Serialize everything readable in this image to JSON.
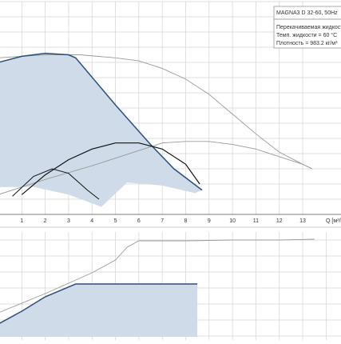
{
  "chart_data": [
    {
      "type": "line",
      "xlim": [
        0,
        14.5
      ],
      "ylim": [
        0,
        14
      ],
      "xticks": [
        1,
        2,
        3,
        4,
        5,
        6,
        7,
        8,
        9,
        10,
        11,
        12,
        13
      ],
      "ygrid": [
        1,
        2,
        3,
        4,
        5,
        6,
        7,
        8,
        9,
        10,
        11,
        12,
        13,
        14
      ],
      "xlabel": "Q [м³/h]",
      "info": [
        "MAGNA3 D 32-60, 50Hz",
        "Перекачиваемая жидкость = Вод",
        "Темп. жидкости = 60 °C",
        "Плотность = 983.2 кг/м³"
      ],
      "areas": [
        {
          "color": "#cfdbe8",
          "x": [
            0,
            1,
            2,
            3,
            3.3,
            5,
            6.5,
            7.5,
            8.7,
            8.4,
            7,
            5.5,
            4.4,
            3,
            1.5,
            0
          ],
          "y": [
            10.0,
            10.4,
            10.6,
            10.5,
            10.3,
            7.2,
            4.6,
            3.0,
            1.6,
            1.4,
            1.9,
            2.1,
            0.5,
            1.3,
            1.8,
            1.8
          ]
        }
      ],
      "series": [
        {
          "color": "#9a9a9a",
          "width": 0.9,
          "x": [
            0,
            2,
            3.5,
            5,
            6,
            7,
            8,
            9,
            10,
            11,
            12,
            13,
            13.4
          ],
          "y": [
            10.3,
            10.5,
            10.5,
            10.3,
            10.1,
            9.6,
            8.9,
            7.9,
            6.6,
            5.3,
            4.1,
            3.3,
            3.0
          ]
        },
        {
          "color": "#9a9a9a",
          "width": 0.9,
          "x": [
            0,
            2,
            4,
            6,
            7,
            8,
            9,
            10,
            11,
            12,
            13,
            13.4
          ],
          "y": [
            1.3,
            2.3,
            3.2,
            4.2,
            4.7,
            4.8,
            4.8,
            4.6,
            4.3,
            3.8,
            3.3,
            3.0
          ]
        },
        {
          "color": "#2b4f7e",
          "width": 1.5,
          "x": [
            0,
            1,
            2,
            3,
            3.3,
            5,
            6.5,
            7.5,
            8.7
          ],
          "y": [
            10.0,
            10.4,
            10.6,
            10.5,
            10.3,
            7.2,
            4.6,
            3.0,
            1.6
          ]
        },
        {
          "color": "#111111",
          "width": 1.2,
          "x": [
            1,
            2,
            3,
            4,
            5,
            6,
            7,
            8,
            8.6
          ],
          "y": [
            1.3,
            2.6,
            3.6,
            4.3,
            4.7,
            4.7,
            4.3,
            3.3,
            2.0
          ]
        },
        {
          "color": "#111111",
          "width": 1.0,
          "x": [
            0.6,
            1.5,
            2.3,
            3,
            3.8,
            4.3
          ],
          "y": [
            1.2,
            2.5,
            3.0,
            2.7,
            1.6,
            1.0
          ]
        }
      ]
    },
    {
      "type": "line",
      "xlim": [
        0,
        14.5
      ],
      "ylim": [
        0,
        6.75
      ],
      "xgrid": [
        1,
        2,
        3,
        4,
        5,
        6,
        7,
        8,
        9,
        10,
        11,
        12,
        13,
        14
      ],
      "ygrid": [
        0.25,
        1.25,
        2.25,
        3.25,
        4.25,
        5.25,
        6.25
      ],
      "areas": [
        {
          "color": "#cfdbe8",
          "x": [
            0,
            1,
            2,
            3.3,
            8.5,
            8.5,
            0
          ],
          "y": [
            1.0,
            1.8,
            2.7,
            3.5,
            3.5,
            0.2,
            0.2
          ]
        }
      ],
      "series": [
        {
          "color": "#9a9a9a",
          "width": 0.9,
          "x": [
            0,
            2,
            4,
            5,
            5.5,
            6,
            8,
            10,
            12,
            13.5
          ],
          "y": [
            1.7,
            2.9,
            4.2,
            5.0,
            5.8,
            6.2,
            6.2,
            6.25,
            6.25,
            6.3
          ]
        },
        {
          "color": "#2b4f7e",
          "width": 1.5,
          "x": [
            0,
            1,
            2,
            3.3,
            8.5
          ],
          "y": [
            1.0,
            1.8,
            2.7,
            3.5,
            3.5
          ]
        }
      ]
    }
  ]
}
